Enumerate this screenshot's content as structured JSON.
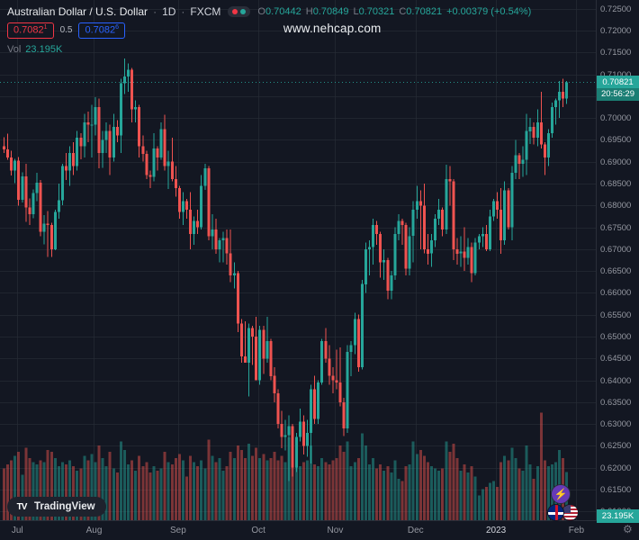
{
  "header": {
    "symbol_title": "Australian Dollar / U.S. Dollar",
    "separator": "·",
    "interval": "1D",
    "exchange": "FXCM",
    "ohlc": {
      "o_label": "O",
      "o": "0.70442",
      "h_label": "H",
      "h": "0.70849",
      "l_label": "L",
      "l": "0.70321",
      "c_label": "C",
      "c": "0.70821",
      "change": "+0.00379 (+0.54%)"
    },
    "bid": "0.7082",
    "bid_sup": "1",
    "spread": "0.5",
    "ask": "0.7082",
    "ask_sup": "6",
    "vol_label": "Vol",
    "vol_value": "23.195K"
  },
  "watermark": "www.nehcap.com",
  "price_axis": {
    "labels": [
      "0.72500",
      "0.72000",
      "0.71500",
      "0.71000",
      "0.70500",
      "0.70000",
      "0.69500",
      "0.69000",
      "0.68500",
      "0.68000",
      "0.67500",
      "0.67000",
      "0.66500",
      "0.66000",
      "0.65500",
      "0.65000",
      "0.64500",
      "0.64000",
      "0.63500",
      "0.63000",
      "0.62500",
      "0.62000",
      "0.61500",
      "0.61000"
    ],
    "last_price": "0.70821",
    "countdown": "20:56:29",
    "volume_label": "23.195K"
  },
  "time_axis": {
    "labels": [
      {
        "text": "Jul",
        "index": 4,
        "major": false
      },
      {
        "text": "Aug",
        "index": 25,
        "major": false
      },
      {
        "text": "Sep",
        "index": 48,
        "major": false
      },
      {
        "text": "Oct",
        "index": 70,
        "major": false
      },
      {
        "text": "Nov",
        "index": 91,
        "major": false
      },
      {
        "text": "Dec",
        "index": 113,
        "major": false
      },
      {
        "text": "2023",
        "index": 135,
        "major": true
      },
      {
        "text": "Feb",
        "index": 157,
        "major": false
      }
    ]
  },
  "footer": {
    "logo_mark": "TV",
    "logo_text": "TradingView",
    "idea_icon": "⚡",
    "gear_icon": "⚙"
  },
  "colors": {
    "bg": "#131722",
    "up": "#26a69a",
    "down": "#ef5350",
    "vol_up": "rgba(38,166,154,0.48)",
    "vol_down": "rgba(239,83,80,0.48)",
    "grid": "rgba(42,46,57,0.6)",
    "accent_bid": "#f23645",
    "accent_ask": "#2962ff"
  },
  "chart_data": {
    "type": "candlestick",
    "title": "Australian Dollar / U.S. Dollar",
    "symbol": "AUD/USD",
    "exchange": "FXCM",
    "timeframe": "1D",
    "start_date": "2022-06-27",
    "weekdays_only": true,
    "price_range": [
      0.608,
      0.727
    ],
    "axis_tick_step": 0.005,
    "volume_unit": "K",
    "legend_position": "top-left",
    "grid": true,
    "columns": [
      "open",
      "high",
      "low",
      "close",
      "volume_k"
    ],
    "candles": [
      [
        0.6935,
        0.6956,
        0.692,
        0.6928,
        25
      ],
      [
        0.6928,
        0.6964,
        0.6905,
        0.691,
        27
      ],
      [
        0.691,
        0.6925,
        0.6869,
        0.688,
        29
      ],
      [
        0.688,
        0.6907,
        0.6851,
        0.6903,
        31
      ],
      [
        0.6903,
        0.6911,
        0.68,
        0.6813,
        33
      ],
      [
        0.6813,
        0.6876,
        0.6807,
        0.6866,
        22
      ],
      [
        0.6866,
        0.6895,
        0.6762,
        0.6795,
        35
      ],
      [
        0.6795,
        0.6816,
        0.6755,
        0.678,
        30
      ],
      [
        0.678,
        0.6837,
        0.6771,
        0.6828,
        28
      ],
      [
        0.6828,
        0.6875,
        0.681,
        0.6852,
        27
      ],
      [
        0.6852,
        0.6858,
        0.673,
        0.674,
        29
      ],
      [
        0.674,
        0.6778,
        0.6711,
        0.6758,
        28
      ],
      [
        0.6758,
        0.6787,
        0.6682,
        0.6755,
        34
      ],
      [
        0.6755,
        0.676,
        0.6682,
        0.67,
        33
      ],
      [
        0.67,
        0.679,
        0.6698,
        0.6785,
        30
      ],
      [
        0.6785,
        0.685,
        0.677,
        0.6812,
        26
      ],
      [
        0.6812,
        0.6895,
        0.68,
        0.689,
        28
      ],
      [
        0.689,
        0.692,
        0.6858,
        0.688,
        27
      ],
      [
        0.688,
        0.6935,
        0.6845,
        0.692,
        29
      ],
      [
        0.692,
        0.6945,
        0.687,
        0.689,
        26
      ],
      [
        0.689,
        0.697,
        0.688,
        0.6955,
        24
      ],
      [
        0.6955,
        0.6965,
        0.6905,
        0.6935,
        25
      ],
      [
        0.6935,
        0.701,
        0.691,
        0.699,
        31
      ],
      [
        0.699,
        0.7015,
        0.6945,
        0.6985,
        29
      ],
      [
        0.6985,
        0.703,
        0.691,
        0.6985,
        32
      ],
      [
        0.6985,
        0.7048,
        0.696,
        0.7025,
        28
      ],
      [
        0.7025,
        0.7045,
        0.6885,
        0.692,
        36
      ],
      [
        0.692,
        0.697,
        0.6886,
        0.695,
        30
      ],
      [
        0.695,
        0.699,
        0.692,
        0.697,
        26
      ],
      [
        0.697,
        0.6985,
        0.687,
        0.691,
        33
      ],
      [
        0.691,
        0.701,
        0.69,
        0.698,
        25
      ],
      [
        0.698,
        0.6995,
        0.6945,
        0.696,
        23
      ],
      [
        0.696,
        0.709,
        0.692,
        0.708,
        38
      ],
      [
        0.708,
        0.7136,
        0.7055,
        0.7095,
        34
      ],
      [
        0.7095,
        0.7125,
        0.706,
        0.711,
        27
      ],
      [
        0.711,
        0.7115,
        0.699,
        0.702,
        29
      ],
      [
        0.702,
        0.704,
        0.699,
        0.7025,
        24
      ],
      [
        0.7025,
        0.703,
        0.691,
        0.6935,
        31
      ],
      [
        0.6935,
        0.696,
        0.69,
        0.6918,
        26
      ],
      [
        0.6918,
        0.6925,
        0.686,
        0.687,
        28
      ],
      [
        0.687,
        0.688,
        0.684,
        0.6865,
        23
      ],
      [
        0.6865,
        0.6965,
        0.6855,
        0.693,
        26
      ],
      [
        0.693,
        0.6935,
        0.688,
        0.691,
        24
      ],
      [
        0.691,
        0.699,
        0.6905,
        0.6975,
        25
      ],
      [
        0.6975,
        0.7008,
        0.688,
        0.689,
        33
      ],
      [
        0.689,
        0.6925,
        0.6838,
        0.69,
        28
      ],
      [
        0.69,
        0.6955,
        0.6855,
        0.686,
        27
      ],
      [
        0.686,
        0.689,
        0.682,
        0.684,
        30
      ],
      [
        0.684,
        0.6845,
        0.677,
        0.6785,
        32
      ],
      [
        0.6785,
        0.683,
        0.6755,
        0.681,
        29
      ],
      [
        0.681,
        0.6815,
        0.677,
        0.679,
        21
      ],
      [
        0.679,
        0.683,
        0.67,
        0.6735,
        31
      ],
      [
        0.6735,
        0.6775,
        0.671,
        0.6765,
        28
      ],
      [
        0.6765,
        0.679,
        0.6735,
        0.675,
        26
      ],
      [
        0.675,
        0.687,
        0.6745,
        0.6845,
        29
      ],
      [
        0.6845,
        0.6895,
        0.6835,
        0.6885,
        25
      ],
      [
        0.6885,
        0.689,
        0.672,
        0.673,
        39
      ],
      [
        0.673,
        0.678,
        0.67,
        0.6745,
        31
      ],
      [
        0.6745,
        0.677,
        0.669,
        0.67,
        28
      ],
      [
        0.67,
        0.6725,
        0.667,
        0.672,
        30
      ],
      [
        0.672,
        0.674,
        0.667,
        0.6725,
        24
      ],
      [
        0.6725,
        0.6745,
        0.6665,
        0.669,
        26
      ],
      [
        0.669,
        0.6745,
        0.6625,
        0.664,
        33
      ],
      [
        0.664,
        0.667,
        0.661,
        0.6645,
        30
      ],
      [
        0.6645,
        0.665,
        0.651,
        0.653,
        36
      ],
      [
        0.653,
        0.654,
        0.644,
        0.6455,
        34
      ],
      [
        0.6455,
        0.6535,
        0.644,
        0.644,
        30
      ],
      [
        0.644,
        0.653,
        0.6363,
        0.652,
        37
      ],
      [
        0.652,
        0.6525,
        0.6435,
        0.65,
        31
      ],
      [
        0.65,
        0.6545,
        0.64,
        0.64,
        35
      ],
      [
        0.64,
        0.6525,
        0.639,
        0.6515,
        30
      ],
      [
        0.6515,
        0.6525,
        0.6415,
        0.645,
        32
      ],
      [
        0.645,
        0.6545,
        0.644,
        0.649,
        29
      ],
      [
        0.649,
        0.6495,
        0.64,
        0.641,
        30
      ],
      [
        0.641,
        0.643,
        0.635,
        0.637,
        33
      ],
      [
        0.637,
        0.638,
        0.629,
        0.63,
        29
      ],
      [
        0.63,
        0.633,
        0.6245,
        0.627,
        31
      ],
      [
        0.627,
        0.631,
        0.624,
        0.6275,
        28
      ],
      [
        0.6275,
        0.632,
        0.617,
        0.6295,
        40
      ],
      [
        0.6295,
        0.63,
        0.618,
        0.62,
        35
      ],
      [
        0.62,
        0.628,
        0.619,
        0.627,
        27
      ],
      [
        0.627,
        0.6335,
        0.626,
        0.6305,
        26
      ],
      [
        0.6305,
        0.632,
        0.623,
        0.625,
        28
      ],
      [
        0.625,
        0.631,
        0.6225,
        0.628,
        29
      ],
      [
        0.628,
        0.639,
        0.621,
        0.638,
        36
      ],
      [
        0.638,
        0.641,
        0.63,
        0.6312,
        27
      ],
      [
        0.6312,
        0.64,
        0.63,
        0.6395,
        26
      ],
      [
        0.6395,
        0.6495,
        0.639,
        0.649,
        30
      ],
      [
        0.649,
        0.652,
        0.644,
        0.645,
        28
      ],
      [
        0.645,
        0.648,
        0.639,
        0.641,
        27
      ],
      [
        0.641,
        0.643,
        0.637,
        0.64,
        29
      ],
      [
        0.64,
        0.647,
        0.638,
        0.6395,
        30
      ],
      [
        0.6395,
        0.6475,
        0.634,
        0.635,
        36
      ],
      [
        0.635,
        0.636,
        0.6272,
        0.629,
        33
      ],
      [
        0.629,
        0.648,
        0.628,
        0.6465,
        38
      ],
      [
        0.6465,
        0.649,
        0.641,
        0.648,
        26
      ],
      [
        0.648,
        0.6555,
        0.646,
        0.654,
        28
      ],
      [
        0.654,
        0.655,
        0.642,
        0.643,
        30
      ],
      [
        0.643,
        0.663,
        0.6425,
        0.662,
        42
      ],
      [
        0.662,
        0.6715,
        0.66,
        0.67,
        36
      ],
      [
        0.67,
        0.672,
        0.664,
        0.6705,
        27
      ],
      [
        0.6705,
        0.677,
        0.6665,
        0.6755,
        30
      ],
      [
        0.6755,
        0.6765,
        0.671,
        0.6735,
        25
      ],
      [
        0.6735,
        0.674,
        0.6635,
        0.667,
        27
      ],
      [
        0.667,
        0.67,
        0.663,
        0.6675,
        24
      ],
      [
        0.6675,
        0.668,
        0.6585,
        0.6605,
        26
      ],
      [
        0.6605,
        0.665,
        0.6585,
        0.664,
        23
      ],
      [
        0.664,
        0.675,
        0.663,
        0.6735,
        29
      ],
      [
        0.6735,
        0.678,
        0.672,
        0.6765,
        20
      ],
      [
        0.6765,
        0.677,
        0.671,
        0.6755,
        19
      ],
      [
        0.6755,
        0.676,
        0.664,
        0.6655,
        26
      ],
      [
        0.6655,
        0.675,
        0.664,
        0.673,
        27
      ],
      [
        0.673,
        0.681,
        0.667,
        0.679,
        38
      ],
      [
        0.679,
        0.6845,
        0.677,
        0.681,
        32
      ],
      [
        0.681,
        0.6835,
        0.67,
        0.68,
        34
      ],
      [
        0.68,
        0.685,
        0.669,
        0.67,
        31
      ],
      [
        0.67,
        0.6735,
        0.6665,
        0.669,
        28
      ],
      [
        0.669,
        0.6735,
        0.666,
        0.672,
        26
      ],
      [
        0.672,
        0.678,
        0.6705,
        0.677,
        25
      ],
      [
        0.677,
        0.6815,
        0.6755,
        0.679,
        24
      ],
      [
        0.679,
        0.6795,
        0.673,
        0.6745,
        25
      ],
      [
        0.6745,
        0.6893,
        0.6735,
        0.686,
        38
      ],
      [
        0.686,
        0.689,
        0.68,
        0.6855,
        33
      ],
      [
        0.6855,
        0.686,
        0.6675,
        0.67,
        37
      ],
      [
        0.67,
        0.6725,
        0.6665,
        0.669,
        30
      ],
      [
        0.669,
        0.673,
        0.666,
        0.6695,
        24
      ],
      [
        0.6695,
        0.675,
        0.665,
        0.668,
        27
      ],
      [
        0.668,
        0.6725,
        0.6665,
        0.6705,
        23
      ],
      [
        0.6705,
        0.6715,
        0.6625,
        0.6645,
        26
      ],
      [
        0.6645,
        0.6725,
        0.664,
        0.6715,
        21
      ],
      [
        0.6715,
        0.6735,
        0.67,
        0.673,
        12
      ],
      [
        0.673,
        0.675,
        0.6705,
        0.6735,
        15
      ],
      [
        0.6735,
        0.6755,
        0.6695,
        0.67,
        16
      ],
      [
        0.67,
        0.679,
        0.6695,
        0.6775,
        18
      ],
      [
        0.6775,
        0.6815,
        0.6765,
        0.681,
        19
      ],
      [
        0.681,
        0.683,
        0.677,
        0.679,
        16
      ],
      [
        0.679,
        0.684,
        0.669,
        0.672,
        28
      ],
      [
        0.672,
        0.6855,
        0.671,
        0.6835,
        31
      ],
      [
        0.6835,
        0.684,
        0.6745,
        0.675,
        29
      ],
      [
        0.675,
        0.689,
        0.672,
        0.6875,
        35
      ],
      [
        0.6875,
        0.695,
        0.686,
        0.6915,
        30
      ],
      [
        0.6915,
        0.692,
        0.686,
        0.6895,
        25
      ],
      [
        0.6895,
        0.6935,
        0.6865,
        0.6905,
        24
      ],
      [
        0.6905,
        0.701,
        0.687,
        0.697,
        36
      ],
      [
        0.697,
        0.7,
        0.694,
        0.698,
        27
      ],
      [
        0.698,
        0.699,
        0.694,
        0.6955,
        20
      ],
      [
        0.6955,
        0.702,
        0.6935,
        0.699,
        26
      ],
      [
        0.699,
        0.706,
        0.693,
        0.694,
        52
      ],
      [
        0.694,
        0.6945,
        0.687,
        0.691,
        29
      ],
      [
        0.691,
        0.6975,
        0.689,
        0.6965,
        26
      ],
      [
        0.6965,
        0.7035,
        0.6955,
        0.7025,
        27
      ],
      [
        0.7025,
        0.7045,
        0.6985,
        0.704,
        28
      ],
      [
        0.704,
        0.7085,
        0.7,
        0.706,
        34
      ],
      [
        0.706,
        0.709,
        0.7025,
        0.7045,
        30
      ],
      [
        0.70442,
        0.70849,
        0.70321,
        0.70821,
        23.195
      ]
    ]
  }
}
